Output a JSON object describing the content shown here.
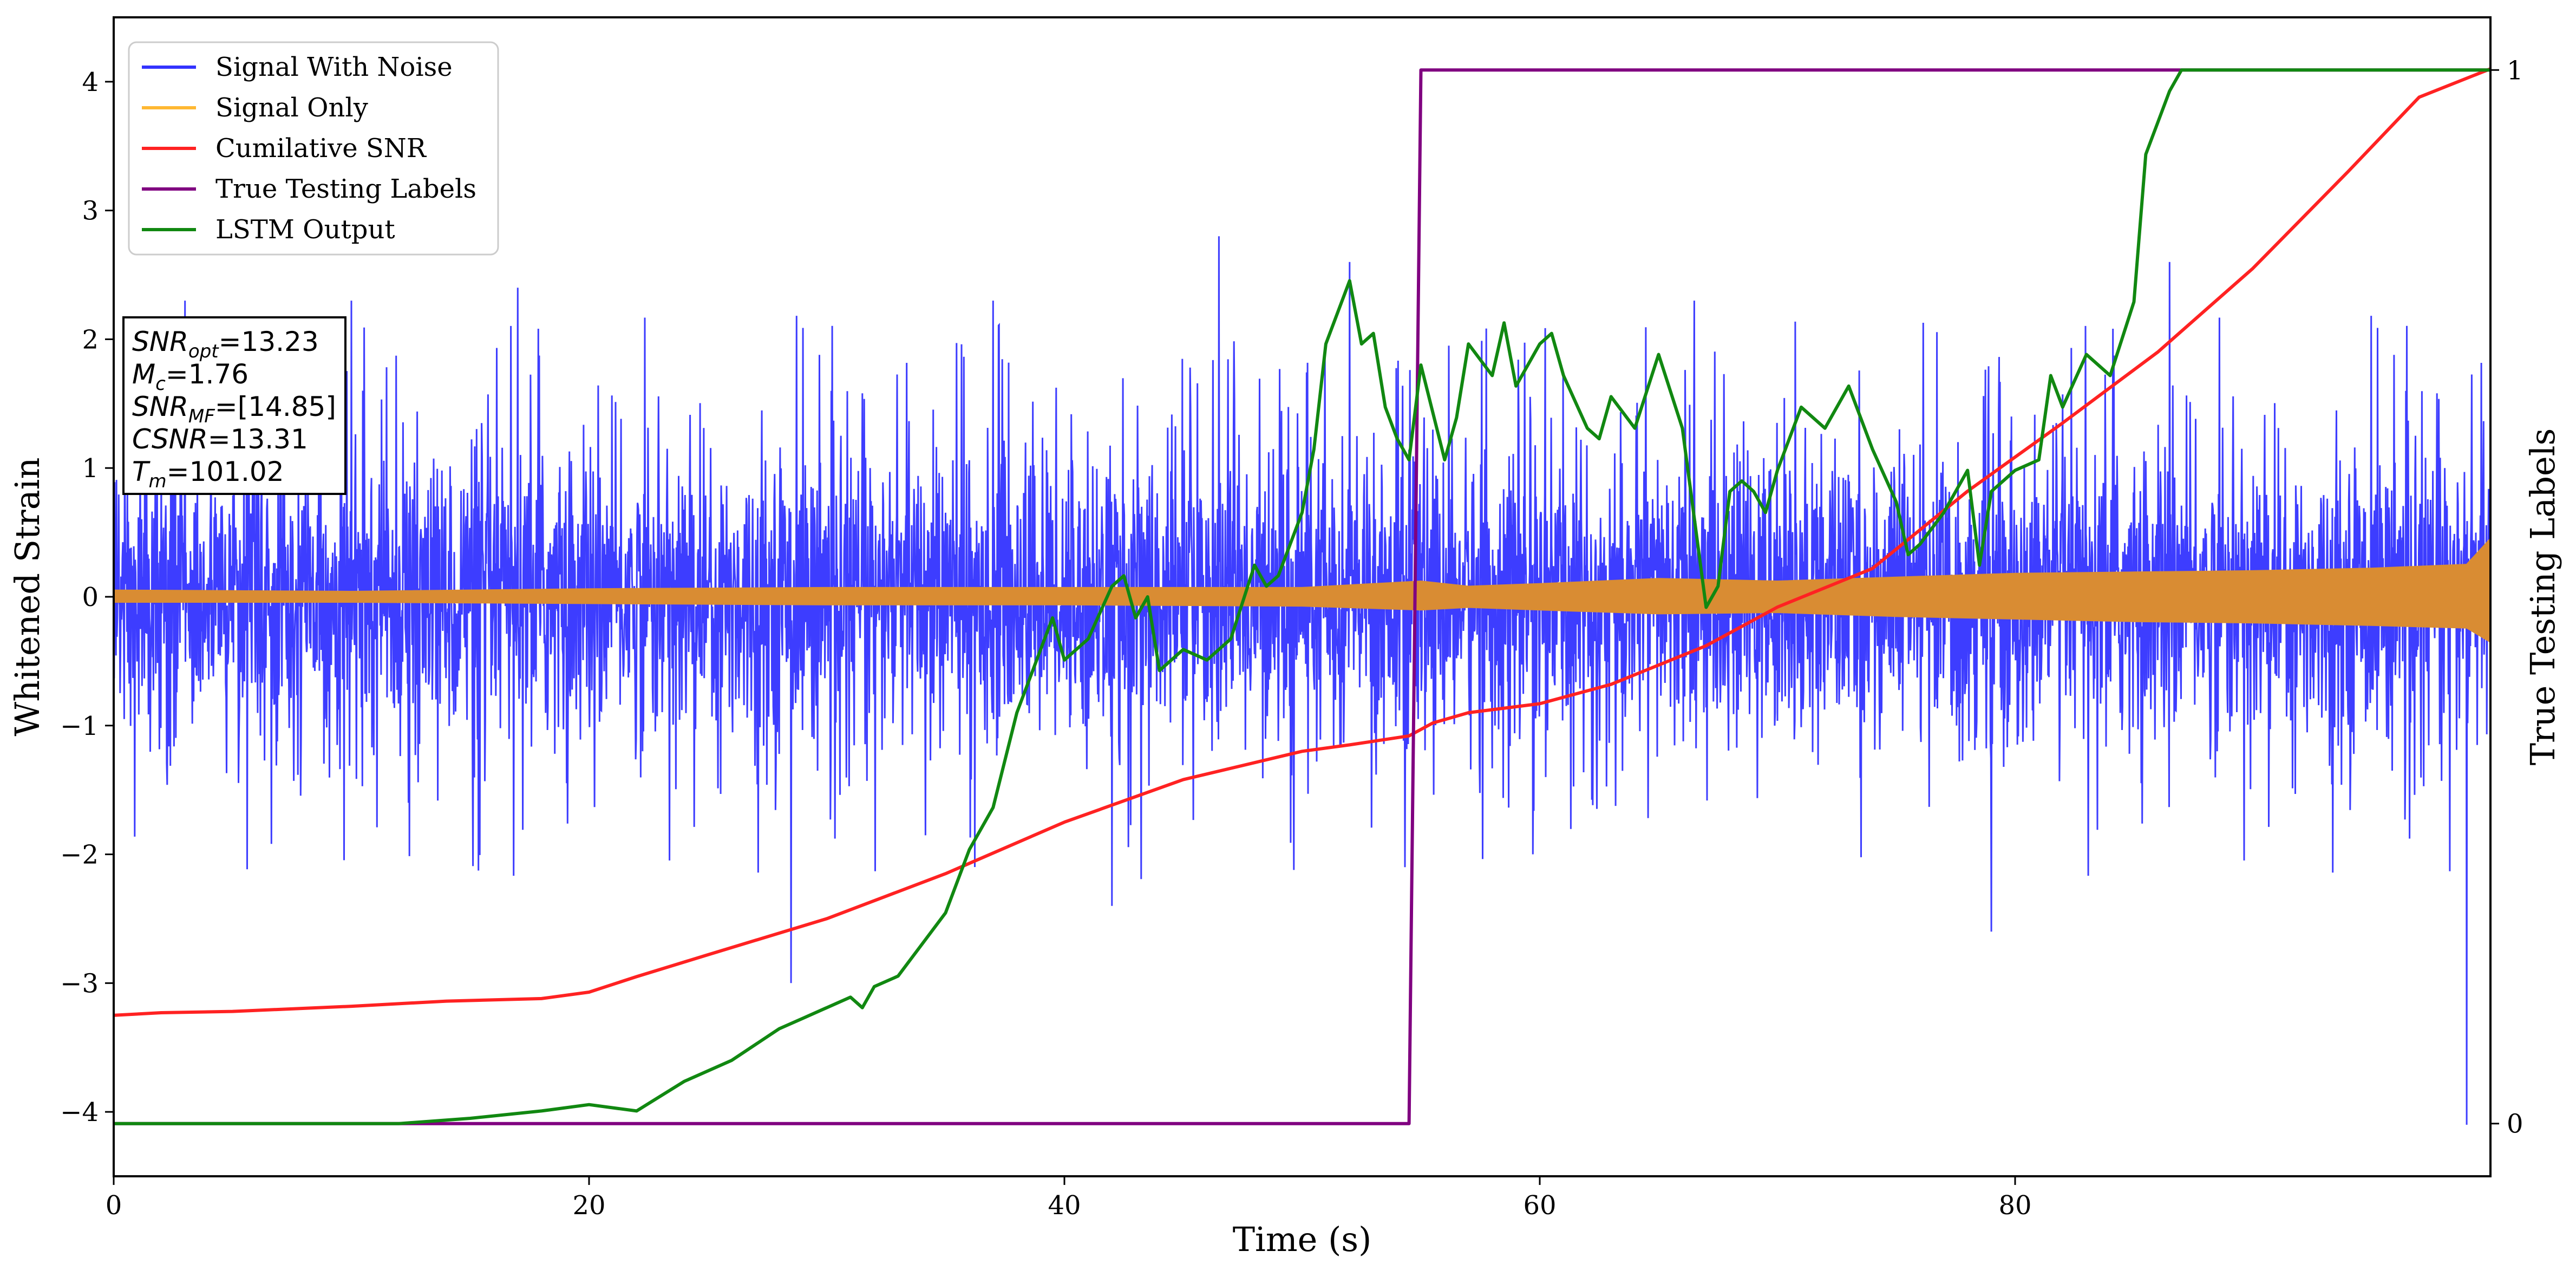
{
  "chart_data": {
    "type": "line",
    "xlabel": "Time (s)",
    "ylabel": "Whitened Strain",
    "ylabel_right": "True Testing Labels",
    "xlim": [
      0,
      100
    ],
    "ylim": [
      -4.5,
      4.5
    ],
    "ylim_right": [
      -0.05,
      1.05
    ],
    "x_ticks": [
      0,
      20,
      40,
      60,
      80
    ],
    "y_ticks": [
      -4,
      -3,
      -2,
      -1,
      0,
      1,
      2,
      3,
      4
    ],
    "y_ticks_right": [
      0,
      1
    ],
    "grid": false,
    "legend_placement": "upper-left",
    "legend": [
      {
        "label": "Signal With Noise",
        "color": "#3333ff"
      },
      {
        "label": "Signal Only",
        "color": "#ffb833"
      },
      {
        "label": "Cumilative SNR",
        "color": "#ff2222"
      },
      {
        "label": "True Testing Labels",
        "color": "#800080"
      },
      {
        "label": "LSTM Output",
        "color": "#118811"
      }
    ],
    "annotation": {
      "lines": [
        {
          "main": "SNR",
          "sub": "opt",
          "value": "=13.23"
        },
        {
          "main": "M",
          "sub": "c",
          "value": "=1.76"
        },
        {
          "main": "SNR",
          "sub": "MF",
          "value": "=[14.85]"
        },
        {
          "main": "CSNR",
          "sub": "",
          "value": "=13.31"
        },
        {
          "main": "T",
          "sub": "m",
          "value": "=101.02"
        }
      ]
    },
    "series": [
      {
        "name": "Signal With Noise",
        "axis": "left",
        "color": "#3333ff",
        "render": "noise",
        "x_range": [
          0,
          100
        ],
        "typical_amplitude": 0.55,
        "spike_min": -2.3,
        "spike_max": 2.8,
        "spike_times": [
          [
            3,
            2.3
          ],
          [
            10,
            2.3
          ],
          [
            17,
            2.4
          ],
          [
            28.5,
            -3.0
          ],
          [
            37,
            2.3
          ],
          [
            42,
            -2.4
          ],
          [
            46.5,
            2.8
          ],
          [
            52,
            2.6
          ],
          [
            66.5,
            2.3
          ],
          [
            79,
            -2.6
          ],
          [
            86.5,
            2.6
          ],
          [
            99,
            -4.1
          ]
        ]
      },
      {
        "name": "Signal Only",
        "axis": "left",
        "color": "#d98c33",
        "render": "envelope",
        "x": [
          0,
          10,
          20,
          30,
          40,
          50,
          55,
          57,
          60,
          65,
          70,
          75,
          80,
          85,
          90,
          95,
          99,
          100
        ],
        "upper": [
          0.05,
          0.04,
          0.06,
          0.07,
          0.07,
          0.07,
          0.12,
          0.08,
          0.1,
          0.14,
          0.12,
          0.15,
          0.18,
          0.19,
          0.2,
          0.22,
          0.25,
          0.45
        ],
        "lower": [
          -0.04,
          -0.04,
          -0.05,
          -0.06,
          -0.06,
          -0.07,
          -0.1,
          -0.08,
          -0.1,
          -0.13,
          -0.12,
          -0.15,
          -0.17,
          -0.19,
          -0.2,
          -0.22,
          -0.24,
          -0.35
        ]
      },
      {
        "name": "Cumilative SNR",
        "axis": "left",
        "color": "#ff2222",
        "x": [
          0,
          2,
          5,
          10,
          14,
          18,
          20,
          22,
          25,
          30,
          35,
          40,
          45,
          50,
          52,
          54.5,
          55.5,
          57,
          60,
          63,
          67,
          70,
          74,
          78,
          82,
          86,
          90,
          94,
          97,
          100
        ],
        "y": [
          -3.25,
          -3.23,
          -3.22,
          -3.18,
          -3.14,
          -3.12,
          -3.07,
          -2.95,
          -2.78,
          -2.5,
          -2.15,
          -1.75,
          -1.42,
          -1.2,
          -1.15,
          -1.08,
          -0.98,
          -0.9,
          -0.83,
          -0.68,
          -0.38,
          -0.08,
          0.22,
          0.82,
          1.35,
          1.9,
          2.55,
          3.3,
          3.88,
          4.1
        ]
      },
      {
        "name": "True Testing Labels",
        "axis": "right",
        "color": "#800080",
        "x": [
          0,
          54.5,
          55,
          100
        ],
        "y": [
          0,
          0,
          1,
          1
        ]
      },
      {
        "name": "LSTM Output",
        "axis": "right",
        "color": "#118811",
        "x": [
          0,
          12,
          15,
          18,
          20,
          22,
          24,
          26,
          28,
          29,
          30,
          31,
          31.5,
          32,
          33,
          34,
          35,
          36,
          37,
          38,
          39,
          39.5,
          40,
          40.5,
          41,
          42,
          42.5,
          43,
          43.5,
          44,
          45,
          46,
          47,
          48,
          48.5,
          49,
          50,
          50.5,
          51,
          52,
          52.5,
          53,
          53.5,
          54,
          54.5,
          55,
          56,
          56.5,
          57,
          58,
          58.5,
          59,
          60,
          60.5,
          61,
          62,
          62.5,
          63,
          64,
          65,
          66,
          67,
          67.5,
          68,
          68.5,
          69,
          69.5,
          70,
          71,
          72,
          73,
          74,
          75,
          75.5,
          76,
          77,
          78,
          78.5,
          79,
          80,
          81,
          81.5,
          82,
          83,
          84,
          85,
          85.5,
          86,
          86.5,
          87,
          88,
          90,
          100
        ],
        "y": [
          0,
          0,
          0.005,
          0.012,
          0.018,
          0.012,
          0.04,
          0.06,
          0.09,
          0.1,
          0.11,
          0.12,
          0.11,
          0.13,
          0.14,
          0.17,
          0.2,
          0.26,
          0.3,
          0.39,
          0.45,
          0.48,
          0.44,
          0.45,
          0.46,
          0.51,
          0.52,
          0.48,
          0.5,
          0.43,
          0.45,
          0.44,
          0.46,
          0.53,
          0.51,
          0.52,
          0.58,
          0.64,
          0.74,
          0.8,
          0.74,
          0.75,
          0.68,
          0.65,
          0.63,
          0.72,
          0.63,
          0.67,
          0.74,
          0.71,
          0.76,
          0.7,
          0.74,
          0.75,
          0.71,
          0.66,
          0.65,
          0.69,
          0.66,
          0.73,
          0.66,
          0.49,
          0.51,
          0.6,
          0.61,
          0.6,
          0.58,
          0.62,
          0.68,
          0.66,
          0.7,
          0.64,
          0.59,
          0.54,
          0.55,
          0.58,
          0.62,
          0.53,
          0.6,
          0.62,
          0.63,
          0.71,
          0.68,
          0.73,
          0.71,
          0.78,
          0.92,
          0.95,
          0.98,
          1.0,
          1.0,
          1.0,
          1.0
        ]
      }
    ]
  }
}
